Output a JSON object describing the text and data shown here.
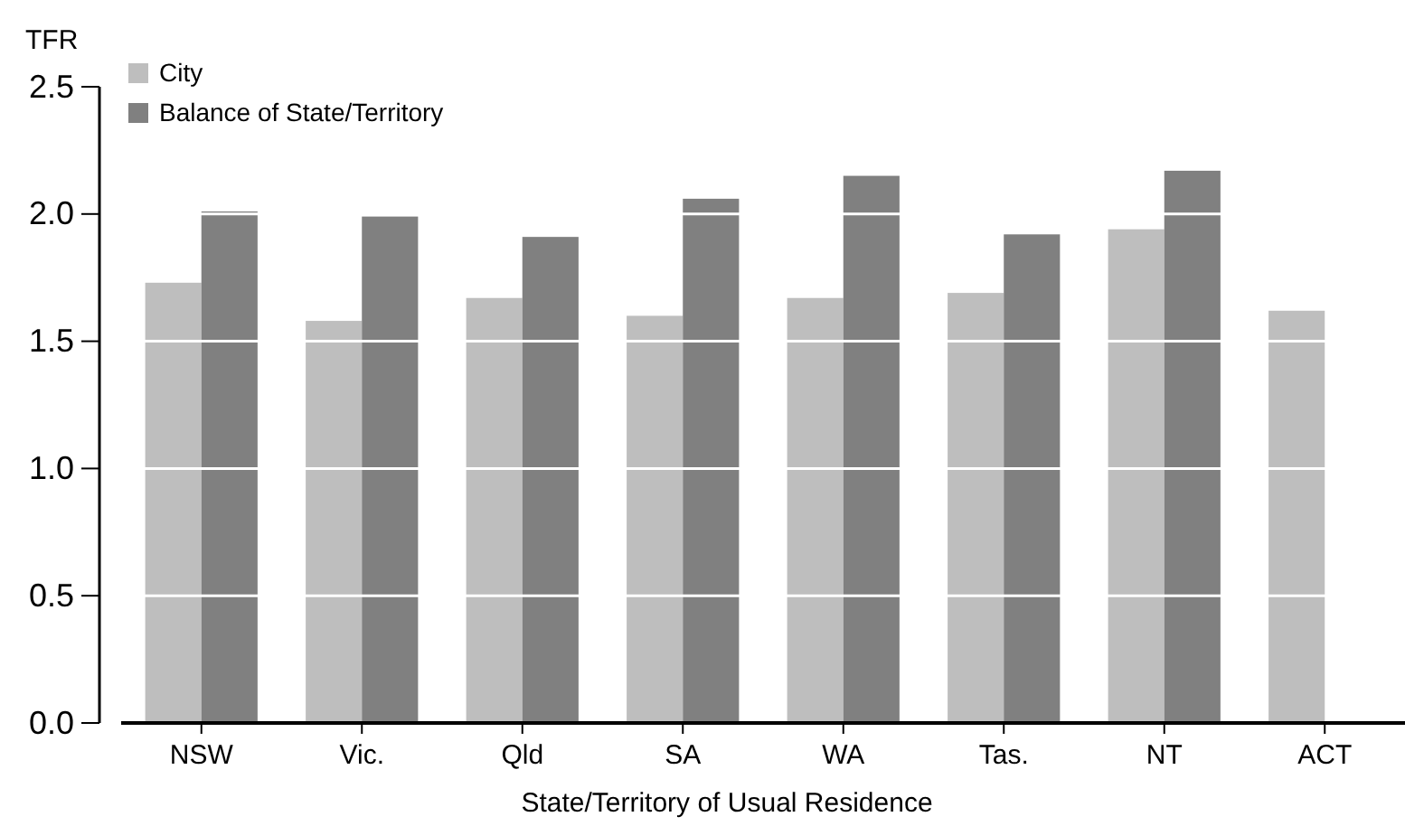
{
  "chart_data": {
    "type": "bar",
    "ylabel": "TFR",
    "xlabel": "State/Territory of Usual Residence",
    "categories": [
      "NSW",
      "Vic.",
      "Qld",
      "SA",
      "WA",
      "Tas.",
      "NT",
      "ACT"
    ],
    "series": [
      {
        "name": "City",
        "color": "#bebebe",
        "values": [
          1.73,
          1.58,
          1.67,
          1.6,
          1.67,
          1.69,
          1.94,
          1.62
        ]
      },
      {
        "name": "Balance of State/Territory",
        "color": "#808080",
        "values": [
          2.01,
          1.99,
          1.91,
          2.06,
          2.15,
          1.92,
          2.17,
          null
        ]
      }
    ],
    "ylim": [
      0,
      2.5
    ],
    "yticks": [
      {
        "value": 0,
        "label": "0.0"
      },
      {
        "value": 0.5,
        "label": "0.5"
      },
      {
        "value": 1,
        "label": "1.0"
      },
      {
        "value": 1.5,
        "label": "1.5"
      },
      {
        "value": 2,
        "label": "2.0"
      },
      {
        "value": 2.5,
        "label": "2.5"
      }
    ],
    "grid": "y",
    "legend": "top left"
  }
}
